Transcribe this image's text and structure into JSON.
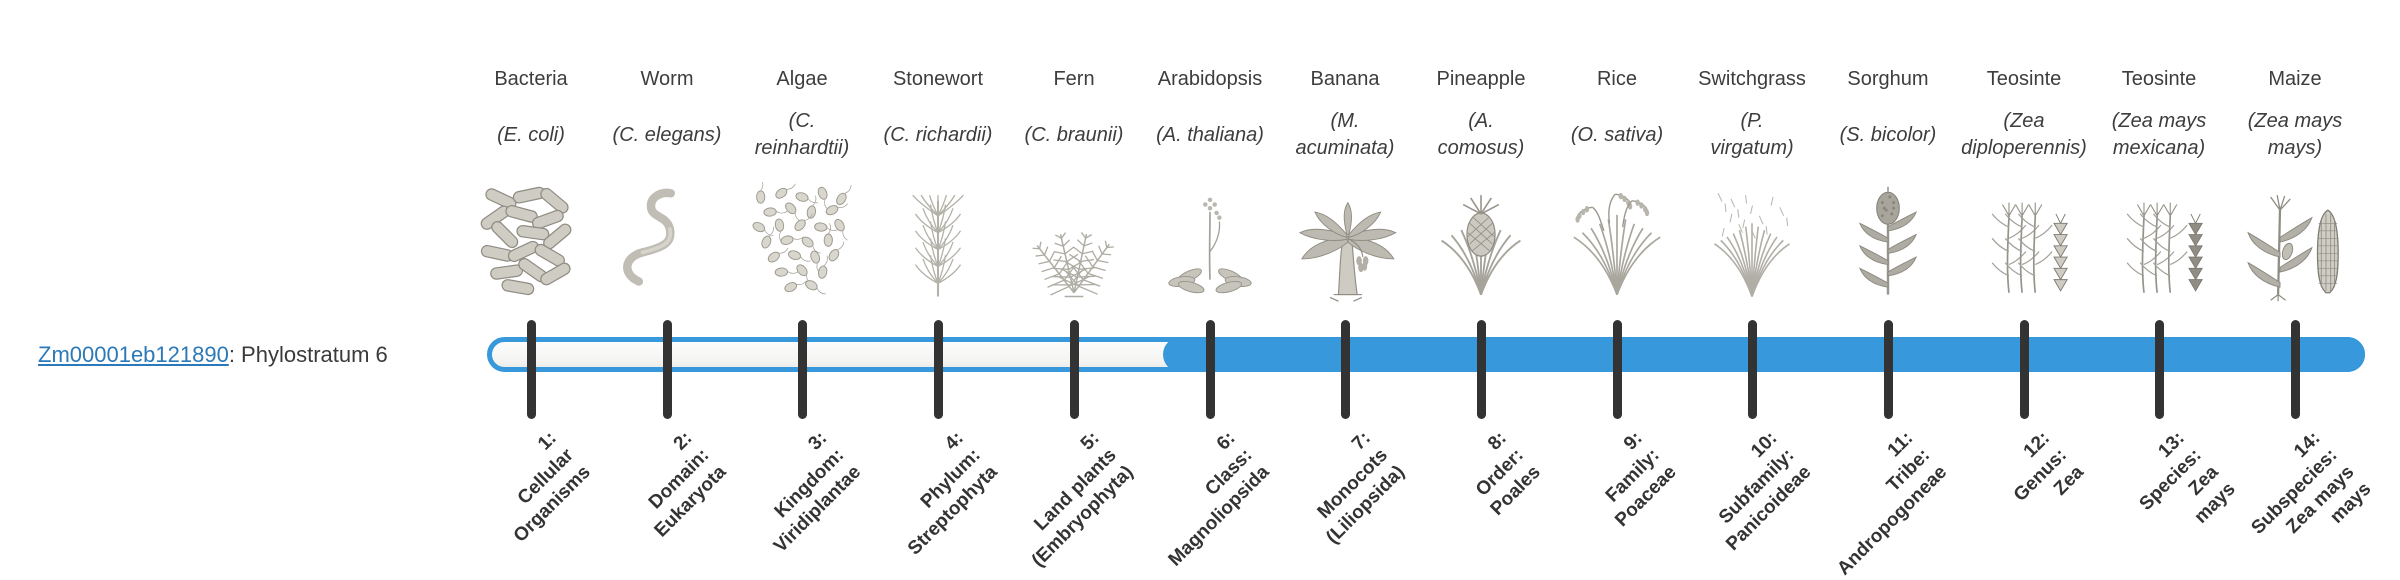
{
  "gene": {
    "id": "Zm00001eb121890",
    "suffix": ": Phylostratum 6",
    "phylostratum": 6
  },
  "timeline": {
    "strata_count": 14,
    "fill_start_stratum": 6
  },
  "colors": {
    "bar": "#3798db",
    "tick": "#333333",
    "link": "#2b79b8",
    "text": "#3d3d3d"
  },
  "organisms": [
    {
      "name": "Bacteria",
      "species": "(E. coli)",
      "icon": "bacteria-icon",
      "stratum_label": "1:\nCellular\nOrganisms"
    },
    {
      "name": "Worm",
      "species": "(C. elegans)",
      "icon": "worm-icon",
      "stratum_label": "2:\nDomain:\nEukaryota"
    },
    {
      "name": "Algae",
      "species": "(C.\nreinhardtii)",
      "icon": "algae-icon",
      "stratum_label": "3:\nKingdom:\nViridiplantae"
    },
    {
      "name": "Stonewort",
      "species": "(C. richardii)",
      "icon": "stonewort-icon",
      "stratum_label": "4:\nPhylum:\nStreptophyta"
    },
    {
      "name": "Fern",
      "species": "(C. braunii)",
      "icon": "fern-icon",
      "stratum_label": "5:\nLand plants\n(Embryophyta)"
    },
    {
      "name": "Arabidopsis",
      "species": "(A. thaliana)",
      "icon": "arabidopsis-icon",
      "stratum_label": "6:\nClass:\nMagnoliopsida"
    },
    {
      "name": "Banana",
      "species": "(M.\nacuminata)",
      "icon": "banana-icon",
      "stratum_label": "7:\nMonocots\n(Liliopsida)"
    },
    {
      "name": "Pineapple",
      "species": "(A.\ncomosus)",
      "icon": "pineapple-icon",
      "stratum_label": "8:\nOrder:\nPoales"
    },
    {
      "name": "Rice",
      "species": "(O. sativa)",
      "icon": "rice-icon",
      "stratum_label": "9:\nFamily:\nPoaceae"
    },
    {
      "name": "Switchgrass",
      "species": "(P.\nvirgatum)",
      "icon": "switchgrass-icon",
      "stratum_label": "10:\nSubfamily:\nPanicoideae"
    },
    {
      "name": "Sorghum",
      "species": "(S. bicolor)",
      "icon": "sorghum-icon",
      "stratum_label": "11:\nTribe:\nAndropogoneae"
    },
    {
      "name": "Teosinte",
      "species": "(Zea\ndiploperennis)",
      "icon": "teosinte-diploperennis-icon",
      "stratum_label": "12:\nGenus:\nZea"
    },
    {
      "name": "Teosinte",
      "species": "(Zea mays\nmexicana)",
      "icon": "teosinte-mexicana-icon",
      "stratum_label": "13:\nSpecies:\nZea\nmays"
    },
    {
      "name": "Maize",
      "species": "(Zea mays\nmays)",
      "icon": "maize-icon",
      "stratum_label": "14:\nSubspecies:\nZea mays\nmays"
    }
  ]
}
